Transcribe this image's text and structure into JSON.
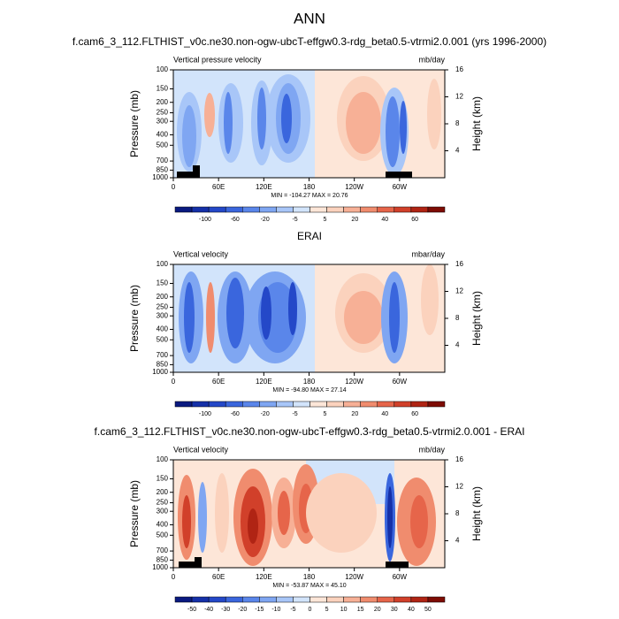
{
  "title": "ANN",
  "chart_data": [
    {
      "type": "contour",
      "title": "f.cam6_3_112.FLTHIST_v0c.ne30.non-ogw-ubcT-effgw0.3-rdg_beta0.5-vtrmi2.0.001 (yrs 1996-2000)",
      "left_label": "Vertical pressure velocity",
      "right_label": "mb/day",
      "ylabel": "Pressure (mb)",
      "y2label": "Height (km)",
      "ylog": true,
      "xlim": [
        0,
        360
      ],
      "xticks": [
        0,
        {
          "value": 60,
          "label": "60E"
        },
        {
          "value": 120,
          "label": "120E"
        },
        180,
        {
          "value": 240,
          "label": "120W"
        },
        {
          "value": 300,
          "label": "60W"
        }
      ],
      "ylim": [
        1000,
        100
      ],
      "yticks": [
        100,
        150,
        200,
        250,
        300,
        400,
        500,
        700,
        850,
        1000
      ],
      "y2lim": [
        0,
        16
      ],
      "y2ticks": [
        4,
        8,
        12,
        16
      ],
      "stats": "MIN = -104.27  MAX =  20.76",
      "colorbar_ticks": [
        -100,
        -60,
        -20,
        -5,
        5,
        20,
        40,
        60
      ],
      "colors": [
        "#0a1a80",
        "#1530a8",
        "#2448c8",
        "#3a66dd",
        "#5a86ea",
        "#7fa6f2",
        "#a8c6f8",
        "#d2e4fb",
        "#fde6d8",
        "#fbd2bd",
        "#f7b096",
        "#f08c6e",
        "#e6654a",
        "#d1402a",
        "#b02414",
        "#7e0c04"
      ]
    },
    {
      "type": "contour",
      "title": "ERAI",
      "left_label": "Vertical velocity",
      "right_label": "mbar/day",
      "ylabel": "Pressure (mb)",
      "y2label": "Height (km)",
      "ylog": true,
      "xlim": [
        0,
        360
      ],
      "xticks": [
        0,
        {
          "value": 60,
          "label": "60E"
        },
        {
          "value": 120,
          "label": "120E"
        },
        180,
        {
          "value": 240,
          "label": "120W"
        },
        {
          "value": 300,
          "label": "60W"
        }
      ],
      "ylim": [
        1000,
        100
      ],
      "yticks": [
        100,
        150,
        200,
        250,
        300,
        400,
        500,
        700,
        850,
        1000
      ],
      "y2lim": [
        0,
        16
      ],
      "y2ticks": [
        4,
        8,
        12,
        16
      ],
      "stats": "MIN = -94.80  MAX =  27.14",
      "colorbar_ticks": [
        -100,
        -60,
        -20,
        -5,
        5,
        20,
        40,
        60
      ],
      "colors": [
        "#0a1a80",
        "#1530a8",
        "#2448c8",
        "#3a66dd",
        "#5a86ea",
        "#7fa6f2",
        "#a8c6f8",
        "#d2e4fb",
        "#fde6d8",
        "#fbd2bd",
        "#f7b096",
        "#f08c6e",
        "#e6654a",
        "#d1402a",
        "#b02414",
        "#7e0c04"
      ]
    },
    {
      "type": "contour",
      "title": "f.cam6_3_112.FLTHIST_v0c.ne30.non-ogw-ubcT-effgw0.3-rdg_beta0.5-vtrmi2.0.001 - ERAI",
      "left_label": "Vertical velocity",
      "right_label": "mb/day",
      "ylabel": "Pressure (mb)",
      "y2label": "Height (km)",
      "ylog": true,
      "xlim": [
        0,
        360
      ],
      "xticks": [
        0,
        {
          "value": 60,
          "label": "60E"
        },
        {
          "value": 120,
          "label": "120E"
        },
        180,
        {
          "value": 240,
          "label": "120W"
        },
        {
          "value": 300,
          "label": "60W"
        }
      ],
      "ylim": [
        1000,
        100
      ],
      "yticks": [
        100,
        150,
        200,
        250,
        300,
        400,
        500,
        700,
        850,
        1000
      ],
      "y2lim": [
        0,
        16
      ],
      "y2ticks": [
        4,
        8,
        12,
        16
      ],
      "stats": "MIN = -53.87  MAX =  45.10",
      "colorbar_ticks": [
        -50,
        -40,
        -30,
        -20,
        -15,
        -10,
        -5,
        0,
        5,
        10,
        15,
        20,
        30,
        40,
        50
      ],
      "colors": [
        "#0a1a80",
        "#1530a8",
        "#2448c8",
        "#3a66dd",
        "#5a86ea",
        "#7fa6f2",
        "#a8c6f8",
        "#d2e4fb",
        "#fde6d8",
        "#fbd2bd",
        "#f7b096",
        "#f08c6e",
        "#e6654a",
        "#d1402a",
        "#b02414",
        "#7e0c04"
      ]
    }
  ]
}
